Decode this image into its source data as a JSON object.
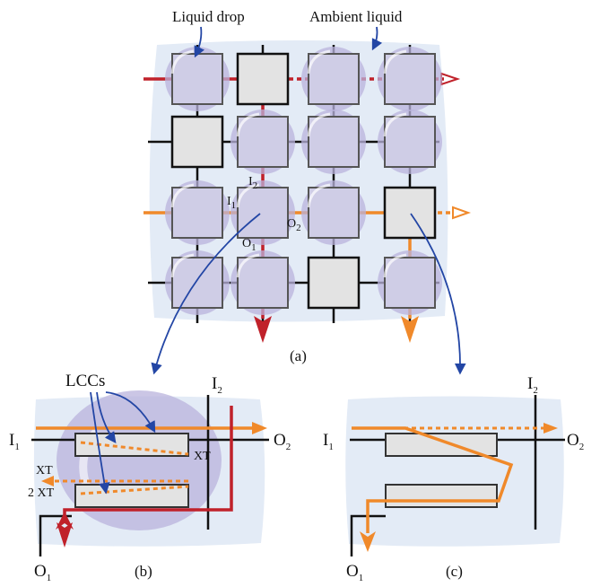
{
  "panel_a": {
    "caption": "(a)",
    "label_liquid_drop": "Liquid drop",
    "label_ambient_liquid": "Ambient liquid",
    "port_i2": "I",
    "port_i2_sub": "2",
    "port_i1": "I",
    "port_i1_sub": "1",
    "port_o2": "O",
    "port_o2_sub": "2",
    "port_o1": "O",
    "port_o1_sub": "1"
  },
  "panel_b": {
    "caption": "(b)",
    "label_lccs": "LCCs",
    "label_xt": "XT",
    "label_xt_left": "XT",
    "label_2xt": "2 XT",
    "port_i1": "I",
    "port_i1_sub": "1",
    "port_i2": "I",
    "port_i2_sub": "2",
    "port_o1": "O",
    "port_o1_sub": "1",
    "port_o2": "O",
    "port_o2_sub": "2"
  },
  "panel_c": {
    "caption": "(c)",
    "port_i1": "I",
    "port_i1_sub": "1",
    "port_i2": "I",
    "port_i2_sub": "2",
    "port_o1": "O",
    "port_o1_sub": "1",
    "port_o2": "O",
    "port_o2_sub": "2"
  },
  "colors": {
    "red_signal": "#c0212a",
    "orange_signal": "#f0892a",
    "arrow_blue": "#2346a5",
    "drop_fill": "#b9b3dc",
    "ambient_fill": "#e3ebf6",
    "tile_fill": "#cfcde6",
    "tile_bare_fill": "#e3e3e3"
  }
}
